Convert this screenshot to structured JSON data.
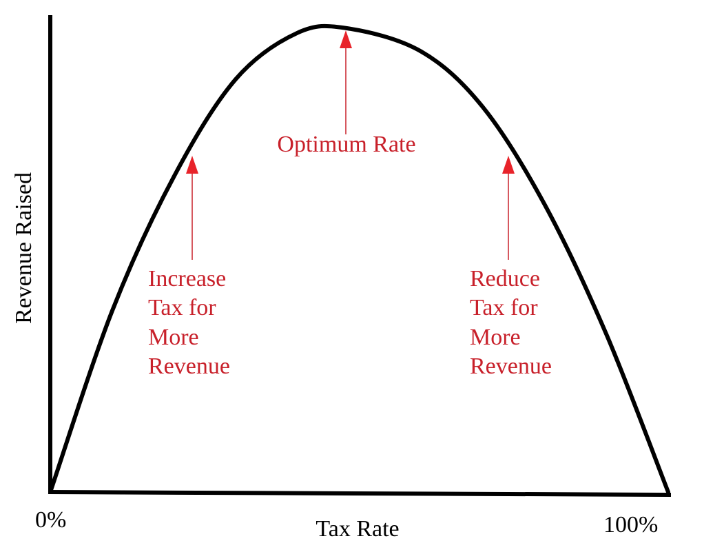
{
  "chart_data": {
    "type": "line",
    "xlabel": "Tax Rate",
    "ylabel": "Revenue Raised",
    "x_tick_labels": [
      "0%",
      "100%"
    ],
    "series": [
      {
        "x": [
          0,
          10,
          20,
          30,
          40,
          48,
          60,
          70,
          80,
          90,
          100
        ],
        "y": [
          0,
          39,
          68,
          89,
          99,
          100,
          95,
          83,
          62,
          34,
          0
        ]
      }
    ],
    "annotations": {
      "optimum": "Optimum Rate",
      "increase": [
        "Increase",
        "Tax for",
        "More",
        "Revenue"
      ],
      "reduce": [
        "Reduce",
        "Tax for",
        "More",
        "Revenue"
      ]
    },
    "grid": false,
    "legend": "none"
  },
  "colors": {
    "curve": "#000000",
    "axes": "#000000",
    "annotation": "#c8202a",
    "arrowhead": "#e8232a"
  }
}
